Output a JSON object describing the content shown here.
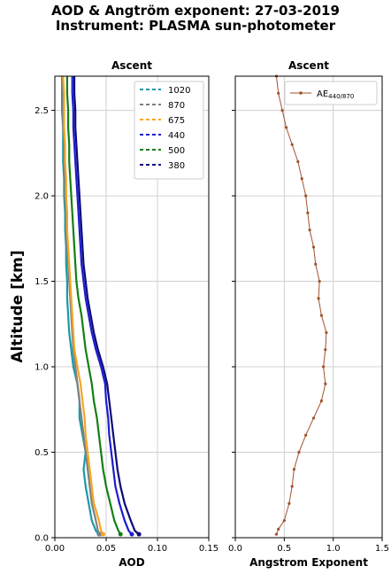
{
  "title": {
    "line1": "AOD & Angtröm exponent: 27-03-2019",
    "line2": "Instrument: PLASMA sun-photometer"
  },
  "ylabel": "Altitude [km]",
  "chart_data": [
    {
      "type": "line",
      "title": "Ascent",
      "xlabel": "AOD",
      "ylabel": "Altitude [km]",
      "xlim": [
        0.0,
        0.15
      ],
      "ylim": [
        0.0,
        2.7
      ],
      "xticks": [
        "0.00",
        "0.05",
        "0.10",
        "0.15"
      ],
      "yticks": [
        "0.0",
        "0.5",
        "1.0",
        "1.5",
        "2.0",
        "2.5"
      ],
      "grid": true,
      "legend_position": "top-right",
      "altitude_km": [
        0.02,
        0.04,
        0.1,
        0.2,
        0.3,
        0.4,
        0.5,
        0.6,
        0.7,
        0.8,
        0.9,
        1.0,
        1.1,
        1.2,
        1.3,
        1.4,
        1.5,
        1.6,
        1.7,
        1.8,
        1.9,
        2.0,
        2.1,
        2.2,
        2.3,
        2.4,
        2.5,
        2.6,
        2.7
      ],
      "series": [
        {
          "name": "1020",
          "color": "#1a9aa6",
          "dash": "4,3",
          "values": [
            0.043,
            0.04,
            0.036,
            0.033,
            0.03,
            0.028,
            0.03,
            0.027,
            0.024,
            0.024,
            0.022,
            0.018,
            0.016,
            0.014,
            0.013,
            0.012,
            0.012,
            0.011,
            0.011,
            0.01,
            0.01,
            0.009,
            0.009,
            0.008,
            0.008,
            0.008,
            0.007,
            0.007,
            0.007
          ]
        },
        {
          "name": "870",
          "color": "#808080",
          "dash": "4,3",
          "values": [
            0.044,
            0.042,
            0.04,
            0.036,
            0.034,
            0.032,
            0.03,
            0.028,
            0.026,
            0.024,
            0.022,
            0.02,
            0.018,
            0.017,
            0.016,
            0.015,
            0.014,
            0.013,
            0.012,
            0.011,
            0.011,
            0.01,
            0.01,
            0.009,
            0.009,
            0.008,
            0.008,
            0.008,
            0.007
          ]
        },
        {
          "name": "675",
          "color": "#f5a623",
          "dash": "4,3",
          "values": [
            0.047,
            0.045,
            0.043,
            0.038,
            0.036,
            0.034,
            0.032,
            0.03,
            0.029,
            0.027,
            0.025,
            0.022,
            0.019,
            0.018,
            0.017,
            0.016,
            0.015,
            0.014,
            0.013,
            0.012,
            0.012,
            0.011,
            0.011,
            0.01,
            0.01,
            0.009,
            0.009,
            0.009,
            0.008
          ]
        },
        {
          "name": "440",
          "color": "#1c1ccf",
          "dash": "4,3",
          "values": [
            0.075,
            0.072,
            0.068,
            0.063,
            0.059,
            0.057,
            0.055,
            0.053,
            0.052,
            0.05,
            0.049,
            0.045,
            0.04,
            0.036,
            0.033,
            0.03,
            0.028,
            0.026,
            0.025,
            0.024,
            0.023,
            0.022,
            0.021,
            0.02,
            0.019,
            0.018,
            0.018,
            0.017,
            0.017
          ]
        },
        {
          "name": "500",
          "color": "#128012",
          "dash": "4,3",
          "values": [
            0.064,
            0.062,
            0.058,
            0.054,
            0.05,
            0.047,
            0.045,
            0.043,
            0.041,
            0.038,
            0.036,
            0.033,
            0.03,
            0.028,
            0.026,
            0.023,
            0.021,
            0.02,
            0.019,
            0.018,
            0.017,
            0.016,
            0.015,
            0.014,
            0.014,
            0.013,
            0.013,
            0.012,
            0.012
          ]
        },
        {
          "name": "380",
          "color": "#0a0a7a",
          "dash": "4,3",
          "values": [
            0.082,
            0.078,
            0.074,
            0.068,
            0.064,
            0.061,
            0.059,
            0.057,
            0.055,
            0.053,
            0.051,
            0.047,
            0.042,
            0.038,
            0.035,
            0.032,
            0.03,
            0.028,
            0.027,
            0.026,
            0.025,
            0.024,
            0.023,
            0.022,
            0.021,
            0.02,
            0.02,
            0.019,
            0.019
          ]
        }
      ]
    },
    {
      "type": "scatter",
      "title": "Ascent",
      "xlabel": "Angstrom Exponent",
      "xlim": [
        0.0,
        1.5
      ],
      "ylim": [
        0.0,
        2.7
      ],
      "xticks": [
        "0.0",
        "0.5",
        "1.0",
        "1.5"
      ],
      "grid": true,
      "legend_position": "top-right",
      "series": [
        {
          "name": "AE",
          "name_sub": "440/870",
          "color": "#a0522d",
          "altitude_km": [
            0.02,
            0.05,
            0.1,
            0.2,
            0.3,
            0.4,
            0.5,
            0.6,
            0.7,
            0.8,
            0.9,
            1.0,
            1.1,
            1.2,
            1.3,
            1.4,
            1.5,
            1.6,
            1.7,
            1.8,
            1.9,
            2.0,
            2.1,
            2.2,
            2.3,
            2.4,
            2.5,
            2.6,
            2.7
          ],
          "values": [
            0.42,
            0.44,
            0.5,
            0.55,
            0.58,
            0.6,
            0.65,
            0.72,
            0.8,
            0.88,
            0.92,
            0.9,
            0.92,
            0.93,
            0.88,
            0.85,
            0.86,
            0.82,
            0.8,
            0.76,
            0.74,
            0.72,
            0.68,
            0.64,
            0.58,
            0.52,
            0.48,
            0.44,
            0.42
          ]
        }
      ]
    }
  ]
}
